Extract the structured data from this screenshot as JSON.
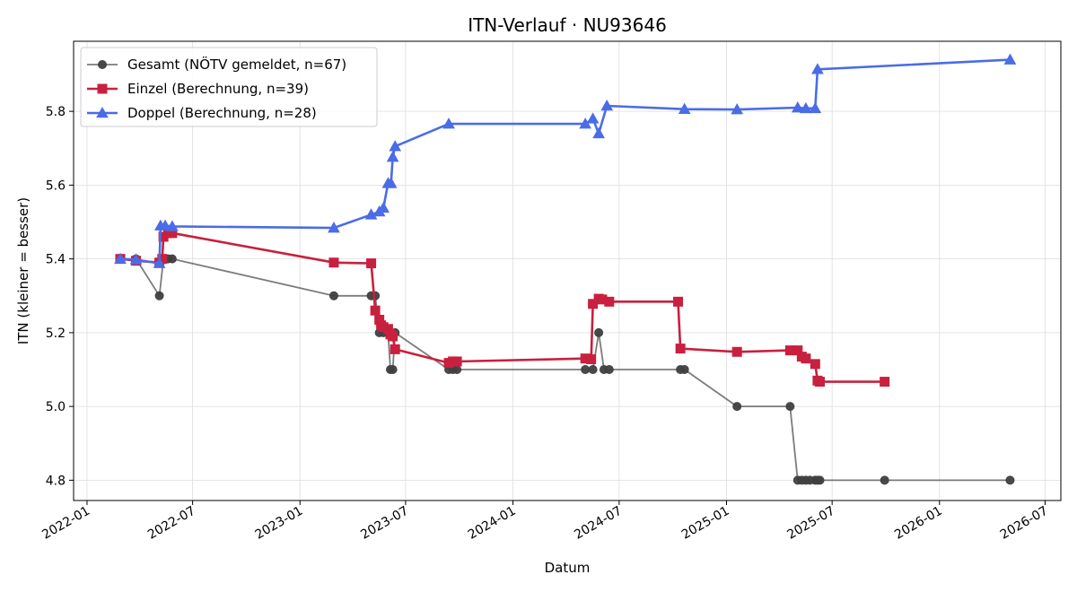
{
  "chart_data": {
    "type": "line",
    "title": "ITN-Verlauf · NU93646",
    "xlabel": "Datum",
    "ylabel": "ITN  (kleiner = besser)",
    "xlim": [
      "2021-12-09",
      "2026-07-28"
    ],
    "ylim": [
      4.745,
      5.99
    ],
    "grid": true,
    "legend_position": "top-left",
    "x_ticks": [
      "2022-01",
      "2022-07",
      "2023-01",
      "2023-07",
      "2024-01",
      "2024-07",
      "2025-01",
      "2025-07",
      "2026-01",
      "2026-07"
    ],
    "y_ticks": [
      4.8,
      5.0,
      5.2,
      5.4,
      5.6,
      5.8
    ],
    "series": [
      {
        "name": "Gesamt (NÖTV gemeldet, n=67)",
        "color": "#505050",
        "marker": "circle",
        "points": [
          [
            "2022-02-27",
            5.4
          ],
          [
            "2022-03-26",
            5.4
          ],
          [
            "2022-05-05",
            5.3
          ],
          [
            "2022-05-12",
            5.4
          ],
          [
            "2022-05-20",
            5.4
          ],
          [
            "2022-05-27",
            5.4
          ],
          [
            "2023-02-28",
            5.3
          ],
          [
            "2023-05-03",
            5.3
          ],
          [
            "2023-05-10",
            5.3
          ],
          [
            "2023-05-17",
            5.2
          ],
          [
            "2023-05-24",
            5.2
          ],
          [
            "2023-06-01",
            5.2
          ],
          [
            "2023-06-05",
            5.1
          ],
          [
            "2023-06-09",
            5.1
          ],
          [
            "2023-06-13",
            5.2
          ],
          [
            "2023-09-13",
            5.1
          ],
          [
            "2023-09-20",
            5.1
          ],
          [
            "2023-09-27",
            5.1
          ],
          [
            "2024-05-04",
            5.1
          ],
          [
            "2024-05-17",
            5.1
          ],
          [
            "2024-05-27",
            5.2
          ],
          [
            "2024-06-05",
            5.1
          ],
          [
            "2024-06-14",
            5.1
          ],
          [
            "2024-10-14",
            5.1
          ],
          [
            "2024-10-21",
            5.1
          ],
          [
            "2025-01-19",
            5.0
          ],
          [
            "2025-04-20",
            5.0
          ],
          [
            "2025-05-03",
            4.8
          ],
          [
            "2025-05-10",
            4.8
          ],
          [
            "2025-05-17",
            4.8
          ],
          [
            "2025-05-24",
            4.8
          ],
          [
            "2025-06-02",
            4.8
          ],
          [
            "2025-06-06",
            4.8
          ],
          [
            "2025-06-10",
            4.8
          ],
          [
            "2025-09-29",
            4.8
          ],
          [
            "2026-05-02",
            4.8
          ]
        ]
      },
      {
        "name": "Einzel (Berechnung, n=39)",
        "color": "#c8203e",
        "marker": "square",
        "points": [
          [
            "2022-02-27",
            5.4
          ],
          [
            "2022-03-26",
            5.395
          ],
          [
            "2022-05-05",
            5.39
          ],
          [
            "2022-05-10",
            5.4
          ],
          [
            "2022-05-12",
            5.46
          ],
          [
            "2022-05-20",
            5.47
          ],
          [
            "2022-05-27",
            5.47
          ],
          [
            "2023-02-28",
            5.39
          ],
          [
            "2023-05-03",
            5.388
          ],
          [
            "2023-05-10",
            5.26
          ],
          [
            "2023-05-17",
            5.235
          ],
          [
            "2023-05-20",
            5.22
          ],
          [
            "2023-05-24",
            5.215
          ],
          [
            "2023-06-01",
            5.21
          ],
          [
            "2023-06-05",
            5.195
          ],
          [
            "2023-06-09",
            5.19
          ],
          [
            "2023-06-13",
            5.155
          ],
          [
            "2023-09-13",
            5.118
          ],
          [
            "2023-09-20",
            5.122
          ],
          [
            "2023-09-27",
            5.122
          ],
          [
            "2024-05-04",
            5.13
          ],
          [
            "2024-05-14",
            5.128
          ],
          [
            "2024-05-17",
            5.278
          ],
          [
            "2024-05-27",
            5.292
          ],
          [
            "2024-06-02",
            5.29
          ],
          [
            "2024-06-14",
            5.284
          ],
          [
            "2024-10-10",
            5.284
          ],
          [
            "2024-10-14",
            5.157
          ],
          [
            "2025-01-19",
            5.148
          ],
          [
            "2025-04-20",
            5.152
          ],
          [
            "2025-05-03",
            5.152
          ],
          [
            "2025-05-10",
            5.135
          ],
          [
            "2025-05-17",
            5.13
          ],
          [
            "2025-06-02",
            5.115
          ],
          [
            "2025-06-06",
            5.07
          ],
          [
            "2025-06-10",
            5.067
          ],
          [
            "2025-09-29",
            5.067
          ]
        ]
      },
      {
        "name": "Doppel (Berechnung, n=28)",
        "color": "#4a6ce6",
        "marker": "triangle",
        "points": [
          [
            "2022-02-27",
            5.4
          ],
          [
            "2022-03-26",
            5.398
          ],
          [
            "2022-05-05",
            5.388
          ],
          [
            "2022-05-07",
            5.49
          ],
          [
            "2022-05-15",
            5.49
          ],
          [
            "2022-05-27",
            5.488
          ],
          [
            "2023-02-28",
            5.484
          ],
          [
            "2023-05-03",
            5.52
          ],
          [
            "2023-05-17",
            5.528
          ],
          [
            "2023-05-24",
            5.538
          ],
          [
            "2023-06-01",
            5.605
          ],
          [
            "2023-06-06",
            5.605
          ],
          [
            "2023-06-09",
            5.676
          ],
          [
            "2023-06-13",
            5.705
          ],
          [
            "2023-09-13",
            5.766
          ],
          [
            "2024-05-04",
            5.766
          ],
          [
            "2024-05-17",
            5.78
          ],
          [
            "2024-05-27",
            5.74
          ],
          [
            "2024-06-10",
            5.815
          ],
          [
            "2024-10-21",
            5.806
          ],
          [
            "2025-01-19",
            5.805
          ],
          [
            "2025-05-03",
            5.81
          ],
          [
            "2025-05-17",
            5.808
          ],
          [
            "2025-06-02",
            5.808
          ],
          [
            "2025-06-06",
            5.914
          ],
          [
            "2026-05-02",
            5.94
          ]
        ]
      }
    ]
  }
}
